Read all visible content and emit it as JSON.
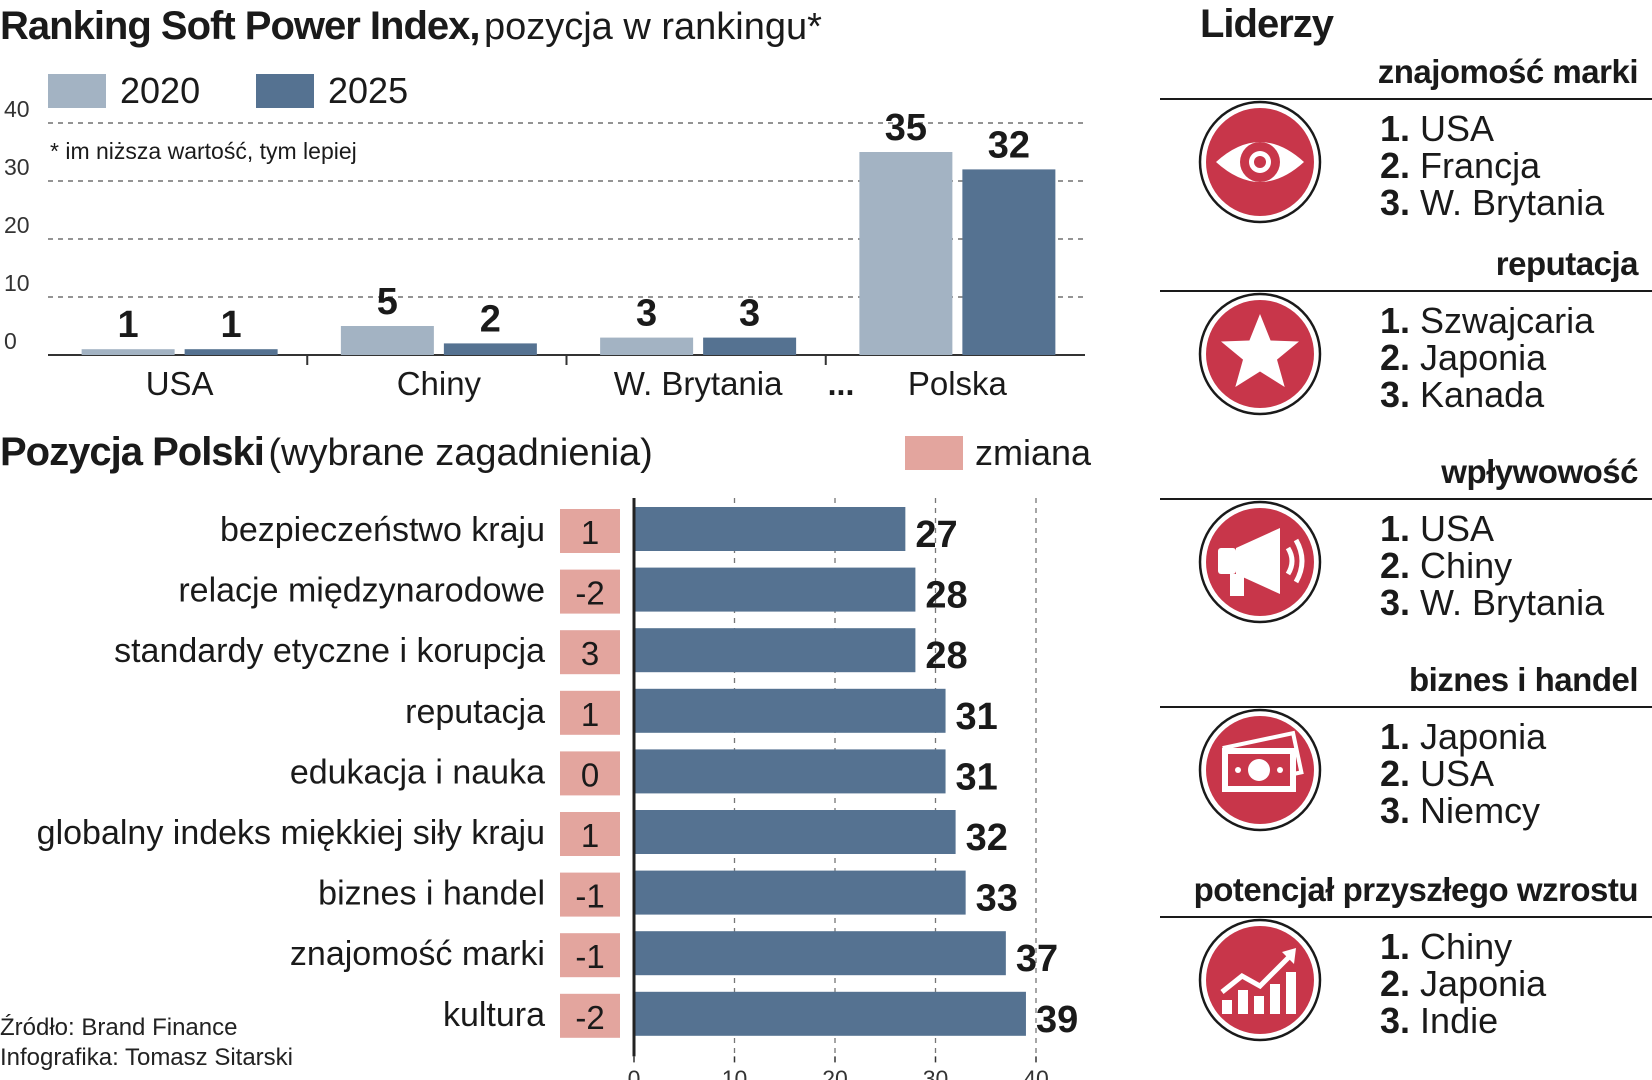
{
  "title1": {
    "bold": "Ranking Soft Power Index,",
    "regular": "pozycja w rankingu*"
  },
  "legend1": [
    {
      "label": "2020",
      "color": "#a3b3c3"
    },
    {
      "label": "2025",
      "color": "#557291"
    }
  ],
  "footnote": "* im niższa wartość, tym lepiej",
  "ellipsis": "...",
  "title2": {
    "bold": "Pozycja Polski",
    "regular": "(wybrane zagadnienia)"
  },
  "legend2": {
    "label": "zmiana",
    "color": "#e3a59e"
  },
  "source": [
    "Źródło: Brand Finance",
    "Infografika: Tomasz Sitarski"
  ],
  "chart_data": [
    {
      "type": "bar",
      "title": "Ranking Soft Power Index, pozycja w rankingu*",
      "categories": [
        "USA",
        "Chiny",
        "W. Brytania",
        "Polska"
      ],
      "series": [
        {
          "name": "2020",
          "values": [
            1,
            5,
            3,
            35
          ],
          "color": "#a3b3c3"
        },
        {
          "name": "2025",
          "values": [
            1,
            2,
            3,
            32
          ],
          "color": "#557291"
        }
      ],
      "ylim": [
        0,
        40
      ],
      "yticks": [
        0,
        10,
        20,
        30,
        40
      ],
      "grid": true,
      "legend": "top-left"
    },
    {
      "type": "bar",
      "orientation": "horizontal",
      "title": "Pozycja Polski (wybrane zagadnienia)",
      "categories": [
        "bezpieczeństwo kraju",
        "relacje międzynarodowe",
        "standardy etyczne i korupcja",
        "reputacja",
        "edukacja i nauka",
        "globalny indeks miękkiej siły kraju",
        "biznes i handel",
        "znajomość marki",
        "kultura"
      ],
      "values": [
        27,
        28,
        28,
        31,
        31,
        32,
        33,
        37,
        39
      ],
      "changes": [
        "1",
        "-2",
        "3",
        "1",
        "0",
        "1",
        "-1",
        "-1",
        "-2"
      ],
      "bar_color": "#557291",
      "change_color": "#e3a59e",
      "xlim": [
        0,
        40
      ],
      "xticks": [
        0,
        10,
        20,
        30,
        40
      ],
      "grid": true
    }
  ],
  "liderzy": {
    "title": "Liderzy",
    "icon_color": "#c8364a",
    "categories": [
      {
        "name": "znajomość marki",
        "icon": "eye-icon",
        "leaders": [
          {
            "n": "1.",
            "country": "USA"
          },
          {
            "n": "2.",
            "country": "Francja"
          },
          {
            "n": "3.",
            "country": "W. Brytania"
          }
        ]
      },
      {
        "name": "reputacja",
        "icon": "star-icon",
        "leaders": [
          {
            "n": "1.",
            "country": "Szwajcaria"
          },
          {
            "n": "2.",
            "country": "Japonia"
          },
          {
            "n": "3.",
            "country": "Kanada"
          }
        ]
      },
      {
        "name": "wpływowość",
        "icon": "megaphone-icon",
        "leaders": [
          {
            "n": "1.",
            "country": "USA"
          },
          {
            "n": "2.",
            "country": "Chiny"
          },
          {
            "n": "3.",
            "country": "W. Brytania"
          }
        ]
      },
      {
        "name": "biznes i handel",
        "icon": "money-icon",
        "leaders": [
          {
            "n": "1.",
            "country": "Japonia"
          },
          {
            "n": "2.",
            "country": "USA"
          },
          {
            "n": "3.",
            "country": "Niemcy"
          }
        ]
      },
      {
        "name": "potencjał przyszłego wzrostu",
        "icon": "growth-chart-icon",
        "leaders": [
          {
            "n": "1.",
            "country": "Chiny"
          },
          {
            "n": "2.",
            "country": "Japonia"
          },
          {
            "n": "3.",
            "country": "Indie"
          }
        ]
      }
    ]
  }
}
